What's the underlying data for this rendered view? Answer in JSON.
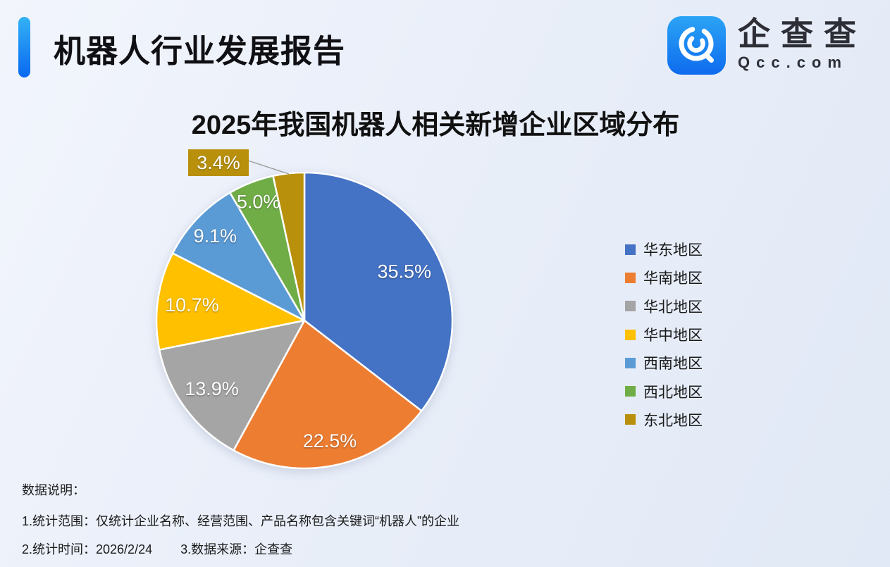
{
  "header": {
    "title": "机器人行业发展报告"
  },
  "logo": {
    "name": "企查查",
    "domain": "Qcc.com",
    "icon": "qcc-magnifier-icon",
    "icon_color": "#1777F2"
  },
  "chart_data": {
    "type": "pie",
    "title": "2025年我国机器人相关新增企业区域分布",
    "direction": "clockwise",
    "start_angle_deg": 0,
    "legend_position": "right",
    "label_style": "percent labels inside slices; smallest slice uses external gold callout box with leader line",
    "series": [
      {
        "name": "华东地区",
        "value": 35.5,
        "label": "35.5%",
        "color": "#4472C4"
      },
      {
        "name": "华南地区",
        "value": 22.5,
        "label": "22.5%",
        "color": "#ED7D31"
      },
      {
        "name": "华北地区",
        "value": 13.9,
        "label": "13.9%",
        "color": "#A5A5A5"
      },
      {
        "name": "华中地区",
        "value": 10.7,
        "label": "10.7%",
        "color": "#FFC000"
      },
      {
        "name": "西南地区",
        "value": 9.1,
        "label": "9.1%",
        "color": "#5B9BD5"
      },
      {
        "name": "西北地区",
        "value": 5.0,
        "label": "5.0%",
        "color": "#70AD47"
      },
      {
        "name": "东北地区",
        "value": 3.4,
        "label": "3.4%",
        "color": "#B8900C"
      }
    ]
  },
  "footer": {
    "heading": "数据说明：",
    "note1": "1.统计范围：仅统计企业名称、经营范围、产品名称包含关键词“机器人”的企业",
    "note2": "2.统计时间：2026/2/24",
    "note3": "3.数据来源：企查查"
  }
}
